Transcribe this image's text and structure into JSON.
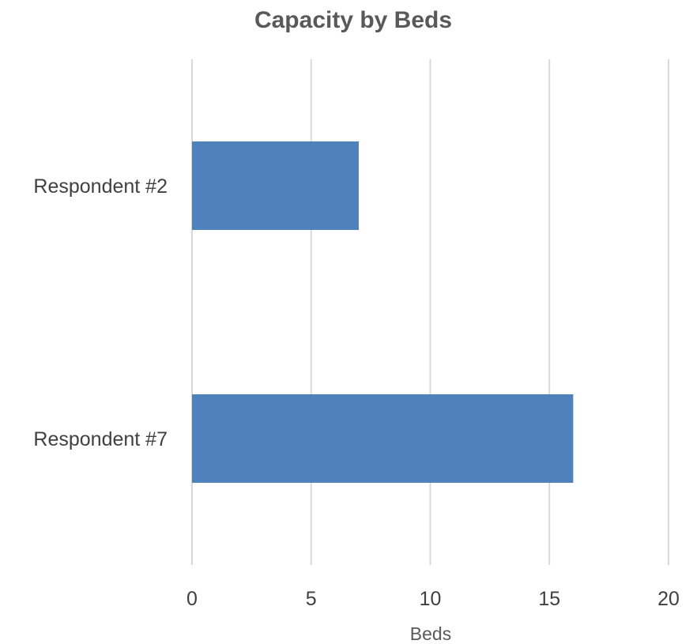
{
  "chart_data": {
    "type": "bar",
    "orientation": "horizontal",
    "title": "Capacity by Beds",
    "xlabel": "Beds",
    "ylabel": "",
    "categories": [
      "Respondent #2",
      "Respondent #7"
    ],
    "values": [
      7,
      16
    ],
    "xlim": [
      0,
      20
    ],
    "xticks": [
      0,
      5,
      10,
      15,
      20
    ],
    "xtick_labels": [
      "0",
      "5",
      "10",
      "15",
      "20"
    ],
    "grid": true,
    "legend": "none",
    "colors": {
      "bar": "#4f81bd",
      "grid": "#d9d9d9",
      "text": "#404040"
    }
  }
}
